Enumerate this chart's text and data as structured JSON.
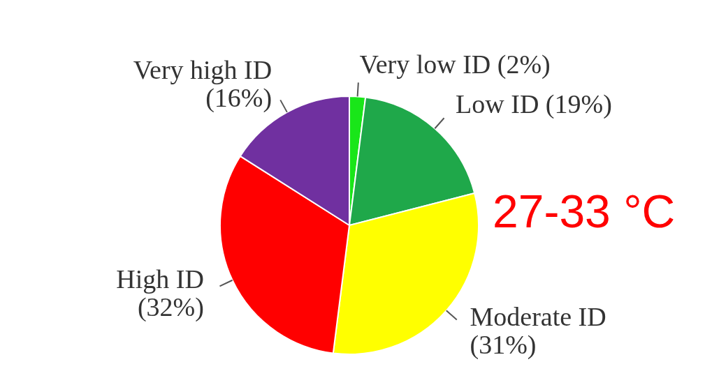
{
  "chart_data": {
    "type": "pie",
    "categories": [
      "Very low ID",
      "Low ID",
      "Moderate ID",
      "High ID",
      "Very high ID"
    ],
    "values": [
      2,
      19,
      31,
      32,
      16
    ],
    "value_labels": [
      "(2%)",
      "(19%)",
      "(31%)",
      "(32%)",
      "(16%)"
    ],
    "colors": [
      "#19e619",
      "#1fa84a",
      "#ffff00",
      "#ff0000",
      "#7030a0"
    ],
    "annotations": [
      "27-33 °C"
    ]
  }
}
